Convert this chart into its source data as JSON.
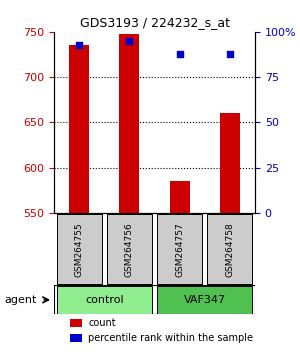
{
  "title": "GDS3193 / 224232_s_at",
  "samples": [
    "GSM264755",
    "GSM264756",
    "GSM264757",
    "GSM264758"
  ],
  "counts": [
    735,
    748,
    585,
    660
  ],
  "percentile_ranks": [
    93,
    95,
    88,
    88
  ],
  "ylim": [
    550,
    750
  ],
  "yticks": [
    550,
    600,
    650,
    700,
    750
  ],
  "right_yticks": [
    0,
    25,
    50,
    75,
    100
  ],
  "right_ylim": [
    0,
    100
  ],
  "bar_color": "#cc0000",
  "dot_color": "#0000cc",
  "bar_width": 0.4,
  "groups": [
    {
      "label": "control",
      "samples": [
        0,
        1
      ],
      "color": "#90ee90"
    },
    {
      "label": "VAF347",
      "samples": [
        2,
        3
      ],
      "color": "#50c050"
    }
  ],
  "group_label": "agent",
  "xlabel_color_left": "#cc0000",
  "xlabel_color_right": "#0000cc",
  "bg_color": "#ffffff",
  "plot_bg": "#ffffff",
  "grid_color": "#000000",
  "sample_box_color": "#cccccc"
}
